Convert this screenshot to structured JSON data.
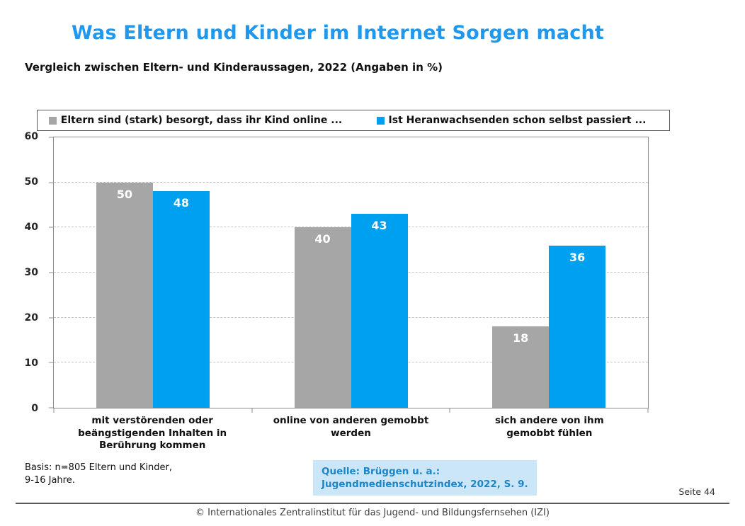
{
  "page": {
    "title": "Was Eltern und Kinder im Internet Sorgen macht",
    "subtitle": "Vergleich zwischen Eltern- und Kinderaussagen, 2022 (Angaben in %)",
    "basis_line1": "Basis: n=805 Eltern und Kinder,",
    "basis_line2": "9-16 Jahre.",
    "source_line1": "Quelle: Brüggen u. a.:",
    "source_line2": "Jugendmedienschutzindex, 2022, S. 9.",
    "page_number": "Seite 44",
    "footer": "© Internationales Zentralinstitut für das Jugend- und Bildungsfernsehen (IZI)"
  },
  "colors": {
    "title_blue": "#1f98ee",
    "bar_gray": "#a6a6a6",
    "bar_blue": "#00a0f0",
    "source_box_bg": "#cbe7f7",
    "source_text": "#1b86c9"
  },
  "chart_data": {
    "type": "bar",
    "title": "Was Eltern und Kinder im Internet Sorgen macht",
    "subtitle": "Vergleich zwischen Eltern- und Kinderaussagen, 2022 (Angaben in %)",
    "categories": [
      "mit verstörenden oder beängstigenden Inhalten in Berührung kommen",
      "online von anderen gemobbt werden",
      "sich andere von ihm gemobbt fühlen"
    ],
    "series": [
      {
        "name": "Eltern sind (stark) besorgt, dass ihr Kind online ...",
        "color": "#a6a6a6",
        "values": [
          50,
          40,
          18
        ]
      },
      {
        "name": "Ist Heranwachsenden schon selbst passiert ...",
        "color": "#00a0f0",
        "values": [
          48,
          43,
          36
        ]
      }
    ],
    "ylabel": "",
    "xlabel": "",
    "ylim": [
      0,
      60
    ],
    "yticks": [
      0,
      10,
      20,
      30,
      40,
      50,
      60
    ],
    "grid": true,
    "gridstyle": "dashed",
    "legend_position": "top",
    "value_labels": "inside-top"
  }
}
